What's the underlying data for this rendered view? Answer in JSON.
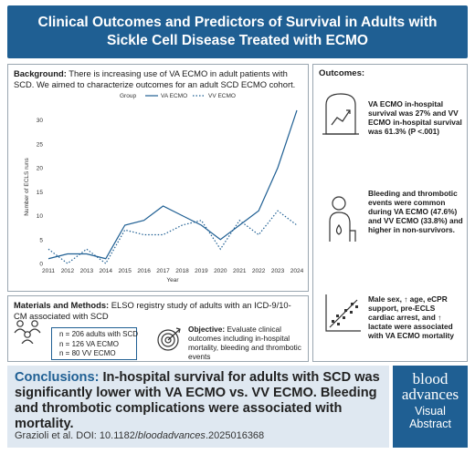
{
  "title": "Clinical Outcomes and Predictors of Survival in Adults with Sickle Cell Disease Treated with ECMO",
  "background": {
    "label": "Background:",
    "text": "There is increasing use of VA ECMO in adult patients with SCD. We aimed to characterize outcomes for an adult SCD ECMO cohort."
  },
  "chart_data": {
    "type": "line",
    "legend_title": "Group",
    "legend_placement": "top",
    "xlabel": "Year",
    "ylabel": "Number of ECLS runs",
    "x": [
      2011,
      2012,
      2013,
      2014,
      2015,
      2016,
      2017,
      2018,
      2019,
      2020,
      2021,
      2022,
      2023,
      2024
    ],
    "yticks": [
      0,
      5,
      10,
      15,
      20,
      25,
      30
    ],
    "ylim": [
      0,
      32
    ],
    "grid": false,
    "series": [
      {
        "name": "VA ECMO",
        "style": "solid",
        "values": [
          1,
          2,
          2,
          1,
          8,
          9,
          12,
          10,
          8,
          5,
          8,
          11,
          20,
          32
        ]
      },
      {
        "name": "VV ECMO",
        "style": "dotted",
        "values": [
          3,
          0,
          3,
          0,
          7,
          6,
          6,
          8,
          9,
          3,
          9,
          6,
          11,
          8
        ]
      }
    ],
    "colors": {
      "line": "#1f5f93"
    }
  },
  "methods": {
    "label": "Materials and Methods:",
    "text": "ELSO registry study of adults with an ICD-9/10-CM associated with SCD",
    "counts": [
      "n = 206 adults with SCD",
      "n = 126 VA ECMO",
      "n = 80  VV ECMO"
    ]
  },
  "objective": {
    "label": "Objective:",
    "text": "Evaluate clinical outcomes including in-hospital mortality, bleeding and thrombotic events"
  },
  "outcomes": {
    "title": "Outcomes:",
    "item1": "VA ECMO in-hospital survival was 27% and VV ECMO in-hospital survival was 61.3% (P <.001)",
    "item2": "Bleeding and thrombotic events were common during VA ECMO (47.6%) and VV ECMO (33.8%) and higher in non-survivors.",
    "item3": "Male sex, ↑ age, eCPR support, pre-ECLS cardiac arrest, and ↑ lactate were associated with VA ECMO mortality"
  },
  "conclusions": {
    "label": "Conclusions:",
    "text": "In-hospital survival for adults with SCD was significantly lower with VA ECMO vs. VV ECMO. Bleeding and thrombotic complications were associated with mortality."
  },
  "citation": {
    "authors": "Grazioli et al. DOI: 10.1182/",
    "journal": "bloodadvances",
    "suffix": ".2025016368"
  },
  "logo": {
    "word1": "blood",
    "word2": "advances",
    "word3": "Visual",
    "word4": "Abstract"
  }
}
